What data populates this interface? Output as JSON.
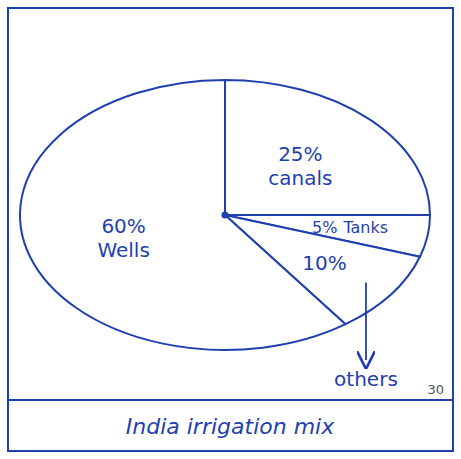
{
  "chart_data": {
    "type": "pie",
    "title": "India irrigation mix",
    "categories": [
      "canals",
      "Tanks",
      "others",
      "Wells"
    ],
    "values": [
      25,
      5,
      10,
      60
    ],
    "value_labels": [
      "25%",
      "5%",
      "10%",
      "60%"
    ],
    "data_labels": true,
    "color": "#1f3fb0",
    "annotations": [
      "30"
    ]
  }
}
